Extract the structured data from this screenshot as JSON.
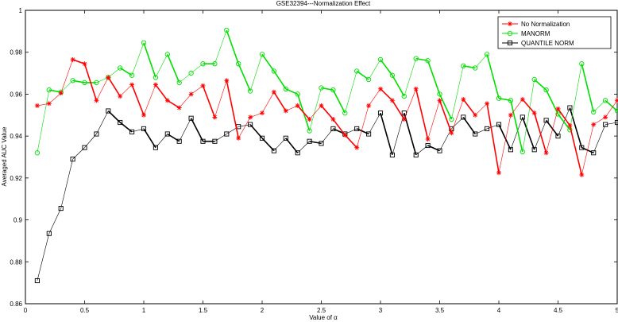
{
  "chart_data": {
    "type": "line",
    "title": "GSE32394---Normalization Effect",
    "xlabel": "Value of α",
    "ylabel": "Averaged AUC Value",
    "xlim": [
      0,
      5
    ],
    "ylim": [
      0.86,
      1.0
    ],
    "x_ticks": [
      0,
      0.5,
      1,
      1.5,
      2,
      2.5,
      3,
      3.5,
      4,
      4.5,
      5
    ],
    "x_tick_labels": [
      "0",
      "0.5",
      "1",
      "1.5",
      "2",
      "2.5",
      "3",
      "3.5",
      "4",
      "4.5",
      "5"
    ],
    "y_ticks": [
      0.86,
      0.88,
      0.9,
      0.92,
      0.94,
      0.96,
      0.98,
      1.0
    ],
    "y_tick_labels": [
      "0.86",
      "0.88",
      "0.9",
      "0.92",
      "0.94",
      "0.96",
      "0.98",
      "1"
    ],
    "grid": false,
    "legend_position": "top-right",
    "x": [
      0.1,
      0.2,
      0.3,
      0.4,
      0.5,
      0.6,
      0.7,
      0.8,
      0.9,
      1.0,
      1.1,
      1.2,
      1.3,
      1.4,
      1.5,
      1.6,
      1.7,
      1.8,
      1.9,
      2.0,
      2.1,
      2.2,
      2.3,
      2.4,
      2.5,
      2.6,
      2.7,
      2.8,
      2.9,
      3.0,
      3.1,
      3.2,
      3.3,
      3.4,
      3.5,
      3.6,
      3.7,
      3.8,
      3.9,
      4.0,
      4.1,
      4.2,
      4.3,
      4.4,
      4.5,
      4.6,
      4.7,
      4.8,
      4.9,
      5.0
    ],
    "series": [
      {
        "name": "No Normalization",
        "color": "#ff0000",
        "marker": "star",
        "values": [
          0.9545,
          0.9555,
          0.9605,
          0.9765,
          0.9745,
          0.957,
          0.968,
          0.959,
          0.9645,
          0.95,
          0.9645,
          0.957,
          0.9535,
          0.96,
          0.964,
          0.949,
          0.9665,
          0.939,
          0.949,
          0.951,
          0.961,
          0.952,
          0.9545,
          0.948,
          0.9545,
          0.948,
          0.9405,
          0.9345,
          0.9545,
          0.9625,
          0.957,
          0.948,
          0.9625,
          0.9385,
          0.957,
          0.9415,
          0.9575,
          0.95,
          0.9555,
          0.9225,
          0.95,
          0.9575,
          0.951,
          0.932,
          0.953,
          0.945,
          0.9215,
          0.9455,
          0.949,
          0.957
        ]
      },
      {
        "name": "MANORM",
        "color": "#00e000",
        "marker": "circle",
        "values": [
          0.932,
          0.962,
          0.961,
          0.9665,
          0.9655,
          0.9655,
          0.968,
          0.9725,
          0.969,
          0.9845,
          0.968,
          0.979,
          0.9655,
          0.97,
          0.9745,
          0.9745,
          0.9905,
          0.9745,
          0.9615,
          0.979,
          0.971,
          0.9625,
          0.96,
          0.9425,
          0.963,
          0.962,
          0.951,
          0.971,
          0.967,
          0.9765,
          0.969,
          0.959,
          0.977,
          0.976,
          0.96,
          0.948,
          0.9735,
          0.9725,
          0.979,
          0.958,
          0.957,
          0.9325,
          0.967,
          0.962,
          0.9505,
          0.943,
          0.9745,
          0.9515,
          0.957,
          0.952
        ]
      },
      {
        "name": "QUANTILE NORM",
        "color": "#000000",
        "marker": "square",
        "values": [
          0.871,
          0.8935,
          0.9055,
          0.929,
          0.9345,
          0.941,
          0.952,
          0.9465,
          0.942,
          0.9435,
          0.9345,
          0.941,
          0.9375,
          0.9485,
          0.9375,
          0.9375,
          0.941,
          0.9445,
          0.9455,
          0.939,
          0.933,
          0.939,
          0.932,
          0.9375,
          0.9365,
          0.9435,
          0.941,
          0.9435,
          0.941,
          0.951,
          0.931,
          0.951,
          0.931,
          0.9355,
          0.933,
          0.9435,
          0.949,
          0.941,
          0.9435,
          0.9455,
          0.9335,
          0.949,
          0.9335,
          0.9475,
          0.94,
          0.9535,
          0.9345,
          0.932,
          0.9455,
          0.9465
        ]
      }
    ]
  }
}
